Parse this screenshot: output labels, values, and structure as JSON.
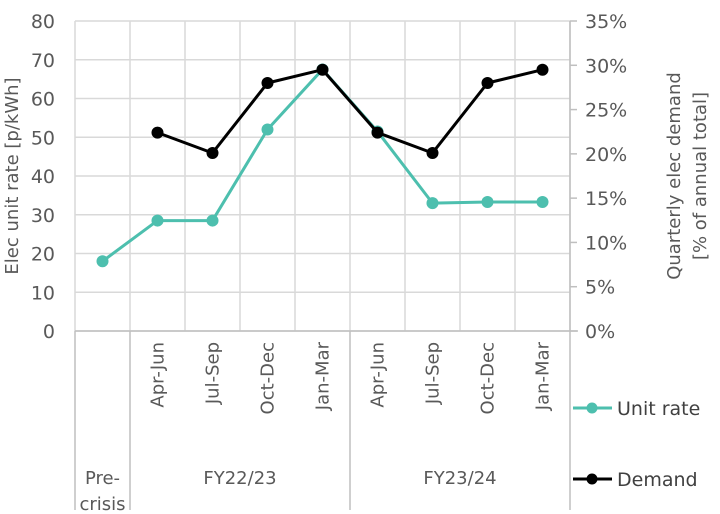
{
  "chart_data": {
    "type": "line",
    "title": "",
    "categories": [
      "Pre-crisis",
      "Apr-Jun",
      "Jul-Sep",
      "Oct-Dec",
      "Jan-Mar",
      "Apr-Jun",
      "Jul-Sep",
      "Oct-Dec",
      "Jan-Mar"
    ],
    "category_groups": [
      {
        "label": "Pre-\ncrisis",
        "lines": [
          "Pre-",
          "crisis"
        ],
        "span": [
          0,
          0
        ]
      },
      {
        "label": "FY22/23",
        "lines": [
          "FY22/23"
        ],
        "span": [
          1,
          4
        ]
      },
      {
        "label": "FY23/24",
        "lines": [
          "FY23/24"
        ],
        "span": [
          5,
          8
        ]
      }
    ],
    "series": [
      {
        "name": "Unit rate",
        "axis": "left",
        "color": "#4DBFAE",
        "values": [
          18,
          28.5,
          28.5,
          52,
          67.5,
          51.5,
          33,
          33.3,
          33.3
        ]
      },
      {
        "name": "Demand",
        "axis": "right",
        "color": "#000000",
        "values": [
          null,
          22.4,
          20.1,
          28,
          29.5,
          22.4,
          20.1,
          28,
          29.5
        ]
      }
    ],
    "ylabel": "Elec unit rate [p/kWh]",
    "ylim": [
      0,
      80
    ],
    "yticks": [
      "0",
      "10",
      "20",
      "30",
      "40",
      "50",
      "60",
      "70",
      "80"
    ],
    "y2label_lines": [
      "Quarterly elec demand",
      "[% of annual total]"
    ],
    "y2label": "Quarterly elec demand [% of annual total]",
    "y2lim": [
      0,
      35
    ],
    "y2ticks": [
      "0%",
      "5%",
      "10%",
      "15%",
      "20%",
      "25%",
      "30%",
      "35%"
    ],
    "xlabel": "",
    "grid": true,
    "legend_position": "right"
  }
}
